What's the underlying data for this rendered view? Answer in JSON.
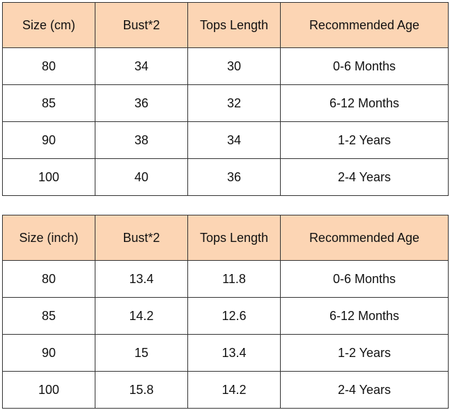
{
  "tables": [
    {
      "header": [
        "Size (cm)",
        "Bust*2",
        "Tops Length",
        "Recommended Age"
      ],
      "rows": [
        [
          "80",
          "34",
          "30",
          "0-6 Months"
        ],
        [
          "85",
          "36",
          "32",
          "6-12 Months"
        ],
        [
          "90",
          "38",
          "34",
          "1-2 Years"
        ],
        [
          "100",
          "40",
          "36",
          "2-4 Years"
        ]
      ]
    },
    {
      "header": [
        "Size (inch)",
        "Bust*2",
        "Tops Length",
        "Recommended Age"
      ],
      "rows": [
        [
          "80",
          "13.4",
          "11.8",
          "0-6 Months"
        ],
        [
          "85",
          "14.2",
          "12.6",
          "6-12 Months"
        ],
        [
          "90",
          "15",
          "13.4",
          "1-2 Years"
        ],
        [
          "100",
          "15.8",
          "14.2",
          "2-4 Years"
        ]
      ]
    }
  ]
}
